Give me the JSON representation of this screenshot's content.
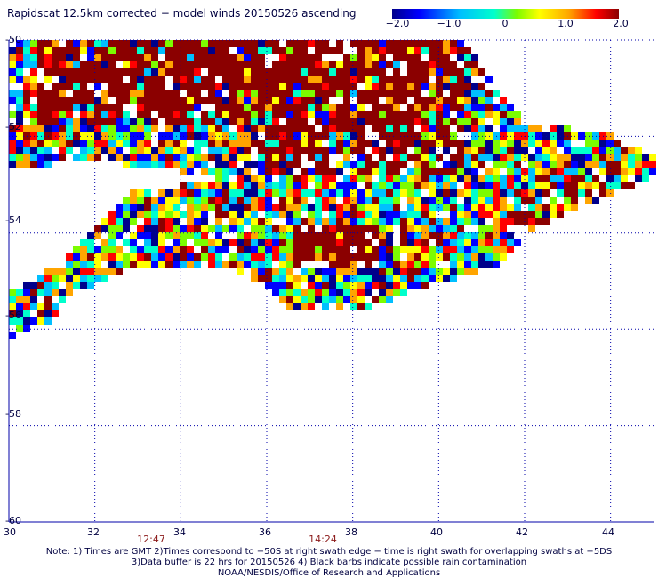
{
  "title": "Rapidscat 12.5km corrected − model winds 20150526 ascending",
  "colorbar": {
    "labels": [
      "−2.0",
      "−1.0",
      "0",
      "1.0",
      "2.0"
    ],
    "range": [
      -2.0,
      2.0
    ],
    "colors": [
      "#00008b",
      "#0000ff",
      "#00bfff",
      "#00ffcc",
      "#7cfc00",
      "#ffff00",
      "#ffa500",
      "#ff0000",
      "#8b0000"
    ]
  },
  "map": {
    "lon_ticks": [
      "30",
      "32",
      "34",
      "36",
      "38",
      "40",
      "42",
      "44"
    ],
    "lat_ticks": [
      "-50",
      "-52",
      "-54",
      "-56",
      "-58",
      "-60"
    ],
    "lon_range": [
      30,
      45
    ],
    "lat_range": [
      -60,
      -50
    ],
    "gridline_color": "#0000aa"
  },
  "times": [
    {
      "label": "12:47",
      "lon": 33.3
    },
    {
      "label": "14:24",
      "lon": 37.3
    }
  ],
  "notes": [
    "Note: 1) Times are GMT 2)Times correspond to −50S at right swath edge − time is right swath for overlapping swaths at −5DS",
    "3)Data buffer is 22 hrs for 20150526 4) Black barbs indicate possible rain contamination",
    "NOAA/NESDIS/Office of Research and Applications"
  ]
}
